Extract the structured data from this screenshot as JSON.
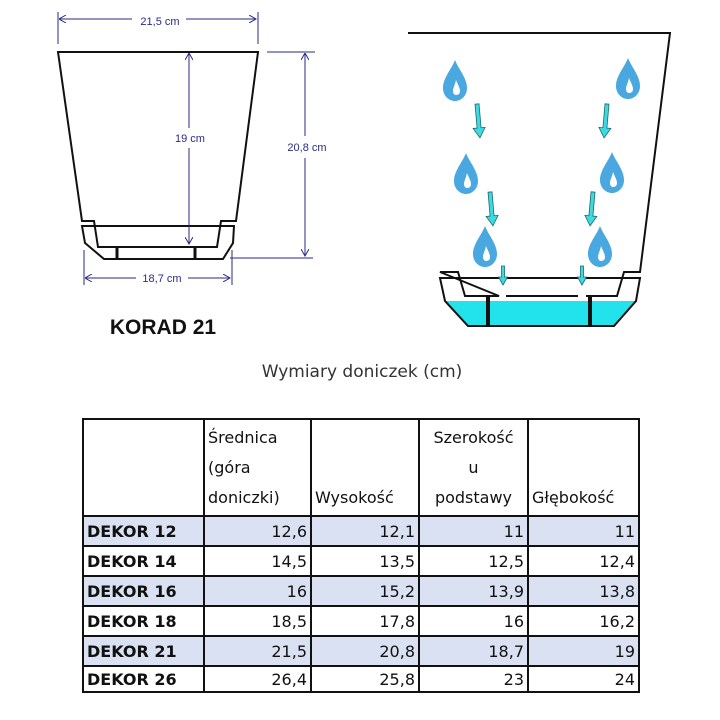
{
  "diagram": {
    "top_width": "21,5 cm",
    "inner_height": "19 cm",
    "total_height": "20,8 cm",
    "base_width": "18,7 cm",
    "model_label": "KORAD 21",
    "colors": {
      "dimension": "#2a2a8a",
      "water": "#22e3ec",
      "drop": "#4aa8e0",
      "arrow": "#3fd9e0"
    }
  },
  "table": {
    "title": "Wymiary doniczek (cm)",
    "headers": [
      [],
      [
        "Średnica",
        "(góra",
        "doniczki)"
      ],
      [
        "Wysokość"
      ],
      [
        "Szerokość",
        "u",
        "podstawy"
      ],
      [
        "Głębokość"
      ]
    ],
    "rows": [
      {
        "name": "DEKOR 12",
        "values": [
          "12,6",
          "12,1",
          "11",
          "11"
        ]
      },
      {
        "name": "DEKOR 14",
        "values": [
          "14,5",
          "13,5",
          "12,5",
          "12,4"
        ]
      },
      {
        "name": "DEKOR 16",
        "values": [
          "16",
          "15,2",
          "13,9",
          "13,8"
        ]
      },
      {
        "name": "DEKOR 18",
        "values": [
          "18,5",
          "17,8",
          "16",
          "16,2"
        ]
      },
      {
        "name": "DEKOR 21",
        "values": [
          "21,5",
          "20,8",
          "18,7",
          "19"
        ]
      },
      {
        "name": "DEKOR 26",
        "values": [
          "26,4",
          "25,8",
          "23",
          "24"
        ]
      }
    ]
  }
}
